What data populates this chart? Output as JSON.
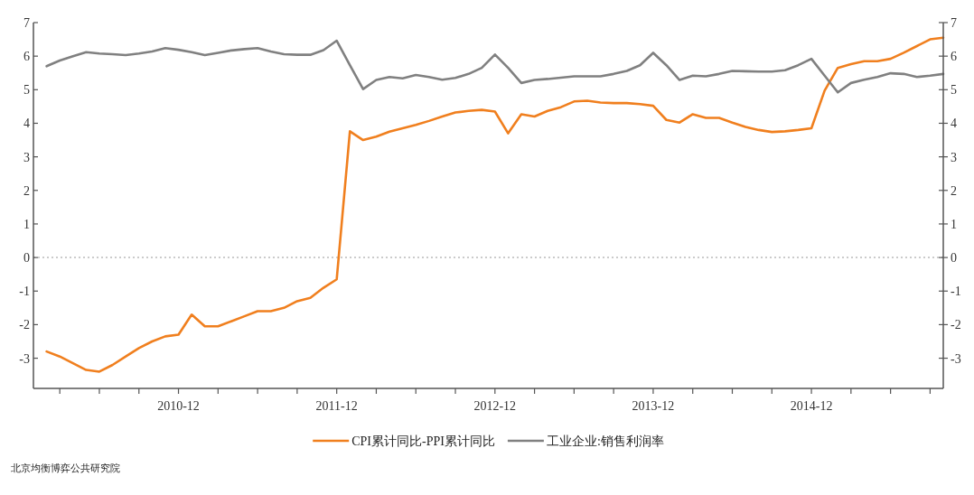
{
  "chart_data": {
    "type": "line",
    "x": [
      "2010-02",
      "2010-03",
      "2010-04",
      "2010-05",
      "2010-06",
      "2010-07",
      "2010-08",
      "2010-09",
      "2010-10",
      "2010-11",
      "2010-12",
      "2011-01",
      "2011-02",
      "2011-03",
      "2011-04",
      "2011-05",
      "2011-06",
      "2011-07",
      "2011-08",
      "2011-09",
      "2011-10",
      "2011-11",
      "2011-12",
      "2012-01",
      "2012-02",
      "2012-03",
      "2012-04",
      "2012-05",
      "2012-06",
      "2012-07",
      "2012-08",
      "2012-09",
      "2012-10",
      "2012-11",
      "2012-12",
      "2013-01",
      "2013-02",
      "2013-03",
      "2013-04",
      "2013-05",
      "2013-06",
      "2013-07",
      "2013-08",
      "2013-09",
      "2013-10",
      "2013-11",
      "2013-12",
      "2014-01",
      "2014-02",
      "2014-03",
      "2014-04",
      "2014-05",
      "2014-06",
      "2014-07",
      "2014-08",
      "2014-09",
      "2014-10",
      "2014-11",
      "2014-12",
      "2015-01",
      "2015-02",
      "2015-03",
      "2015-04",
      "2015-05",
      "2015-06",
      "2015-07",
      "2015-08",
      "2015-09",
      "2015-10"
    ],
    "series": [
      {
        "name": "CPI累计同比-PPI累计同比",
        "color": "#f07f1e",
        "values": [
          -2.8,
          -2.95,
          -3.15,
          -3.35,
          -3.4,
          -3.2,
          -2.95,
          -2.7,
          -2.5,
          -2.35,
          -2.3,
          -1.7,
          -2.05,
          -2.05,
          -1.9,
          -1.75,
          -1.6,
          -1.6,
          -1.5,
          -1.3,
          -1.2,
          -0.9,
          -0.65,
          3.76,
          3.5,
          3.6,
          3.75,
          3.85,
          3.95,
          4.07,
          4.2,
          4.32,
          4.37,
          4.4,
          4.35,
          3.7,
          4.27,
          4.2,
          4.37,
          4.48,
          4.65,
          4.67,
          4.62,
          4.6,
          4.6,
          4.57,
          4.52,
          4.1,
          4.02,
          4.27,
          4.16,
          4.16,
          4.02,
          3.89,
          3.8,
          3.74,
          3.76,
          3.8,
          3.85,
          4.97,
          5.65,
          5.76,
          5.85,
          5.85,
          5.92,
          6.1,
          6.3,
          6.5,
          6.55
        ]
      },
      {
        "name": "工业企业:销售利润率",
        "color": "#808080",
        "values": [
          5.7,
          5.87,
          6.0,
          6.12,
          6.08,
          6.06,
          6.03,
          6.08,
          6.14,
          6.24,
          6.19,
          6.12,
          6.03,
          6.1,
          6.17,
          6.21,
          6.24,
          6.14,
          6.06,
          6.04,
          6.04,
          6.18,
          6.46,
          5.73,
          5.02,
          5.29,
          5.38,
          5.34,
          5.44,
          5.38,
          5.3,
          5.35,
          5.47,
          5.65,
          6.05,
          5.65,
          5.2,
          5.29,
          5.32,
          5.36,
          5.4,
          5.4,
          5.4,
          5.47,
          5.56,
          5.73,
          6.1,
          5.73,
          5.29,
          5.42,
          5.4,
          5.47,
          5.56,
          5.55,
          5.54,
          5.54,
          5.58,
          5.73,
          5.92,
          5.42,
          4.92,
          5.2,
          5.3,
          5.38,
          5.49,
          5.47,
          5.38,
          5.42,
          5.47
        ]
      }
    ],
    "xlim": [
      "2010-01",
      "2015-10"
    ],
    "xticks": [
      {
        "value": "2010-03",
        "label": null
      },
      {
        "value": "2010-06",
        "label": null
      },
      {
        "value": "2010-09",
        "label": null
      },
      {
        "value": "2010-12",
        "label": "2010-12"
      },
      {
        "value": "2011-03",
        "label": null
      },
      {
        "value": "2011-06",
        "label": null
      },
      {
        "value": "2011-09",
        "label": null
      },
      {
        "value": "2011-12",
        "label": "2011-12"
      },
      {
        "value": "2012-03",
        "label": null
      },
      {
        "value": "2012-06",
        "label": null
      },
      {
        "value": "2012-09",
        "label": null
      },
      {
        "value": "2012-12",
        "label": "2012-12"
      },
      {
        "value": "2013-03",
        "label": null
      },
      {
        "value": "2013-06",
        "label": null
      },
      {
        "value": "2013-09",
        "label": null
      },
      {
        "value": "2013-12",
        "label": "2013-12"
      },
      {
        "value": "2014-03",
        "label": null
      },
      {
        "value": "2014-06",
        "label": null
      },
      {
        "value": "2014-09",
        "label": null
      },
      {
        "value": "2014-12",
        "label": "2014-12"
      },
      {
        "value": "2015-03",
        "label": null
      },
      {
        "value": "2015-06",
        "label": null
      },
      {
        "value": "2015-09",
        "label": null
      }
    ],
    "ylim": [
      -3.9,
      7
    ],
    "yticks": [
      -3,
      -2,
      -1,
      0,
      1,
      2,
      3,
      4,
      5,
      6,
      7
    ],
    "y2lim": [
      -3.9,
      7
    ],
    "y2ticks": [
      -3,
      -2,
      -1,
      0,
      1,
      2,
      3,
      4,
      5,
      6,
      7
    ],
    "ref_lines": [
      {
        "axis": "y",
        "value": 0,
        "color": "#bbbbbb",
        "line_style": "dotted"
      }
    ],
    "legend": "bottom",
    "annotations": [
      "北京均衡博弈公共研究院"
    ]
  }
}
